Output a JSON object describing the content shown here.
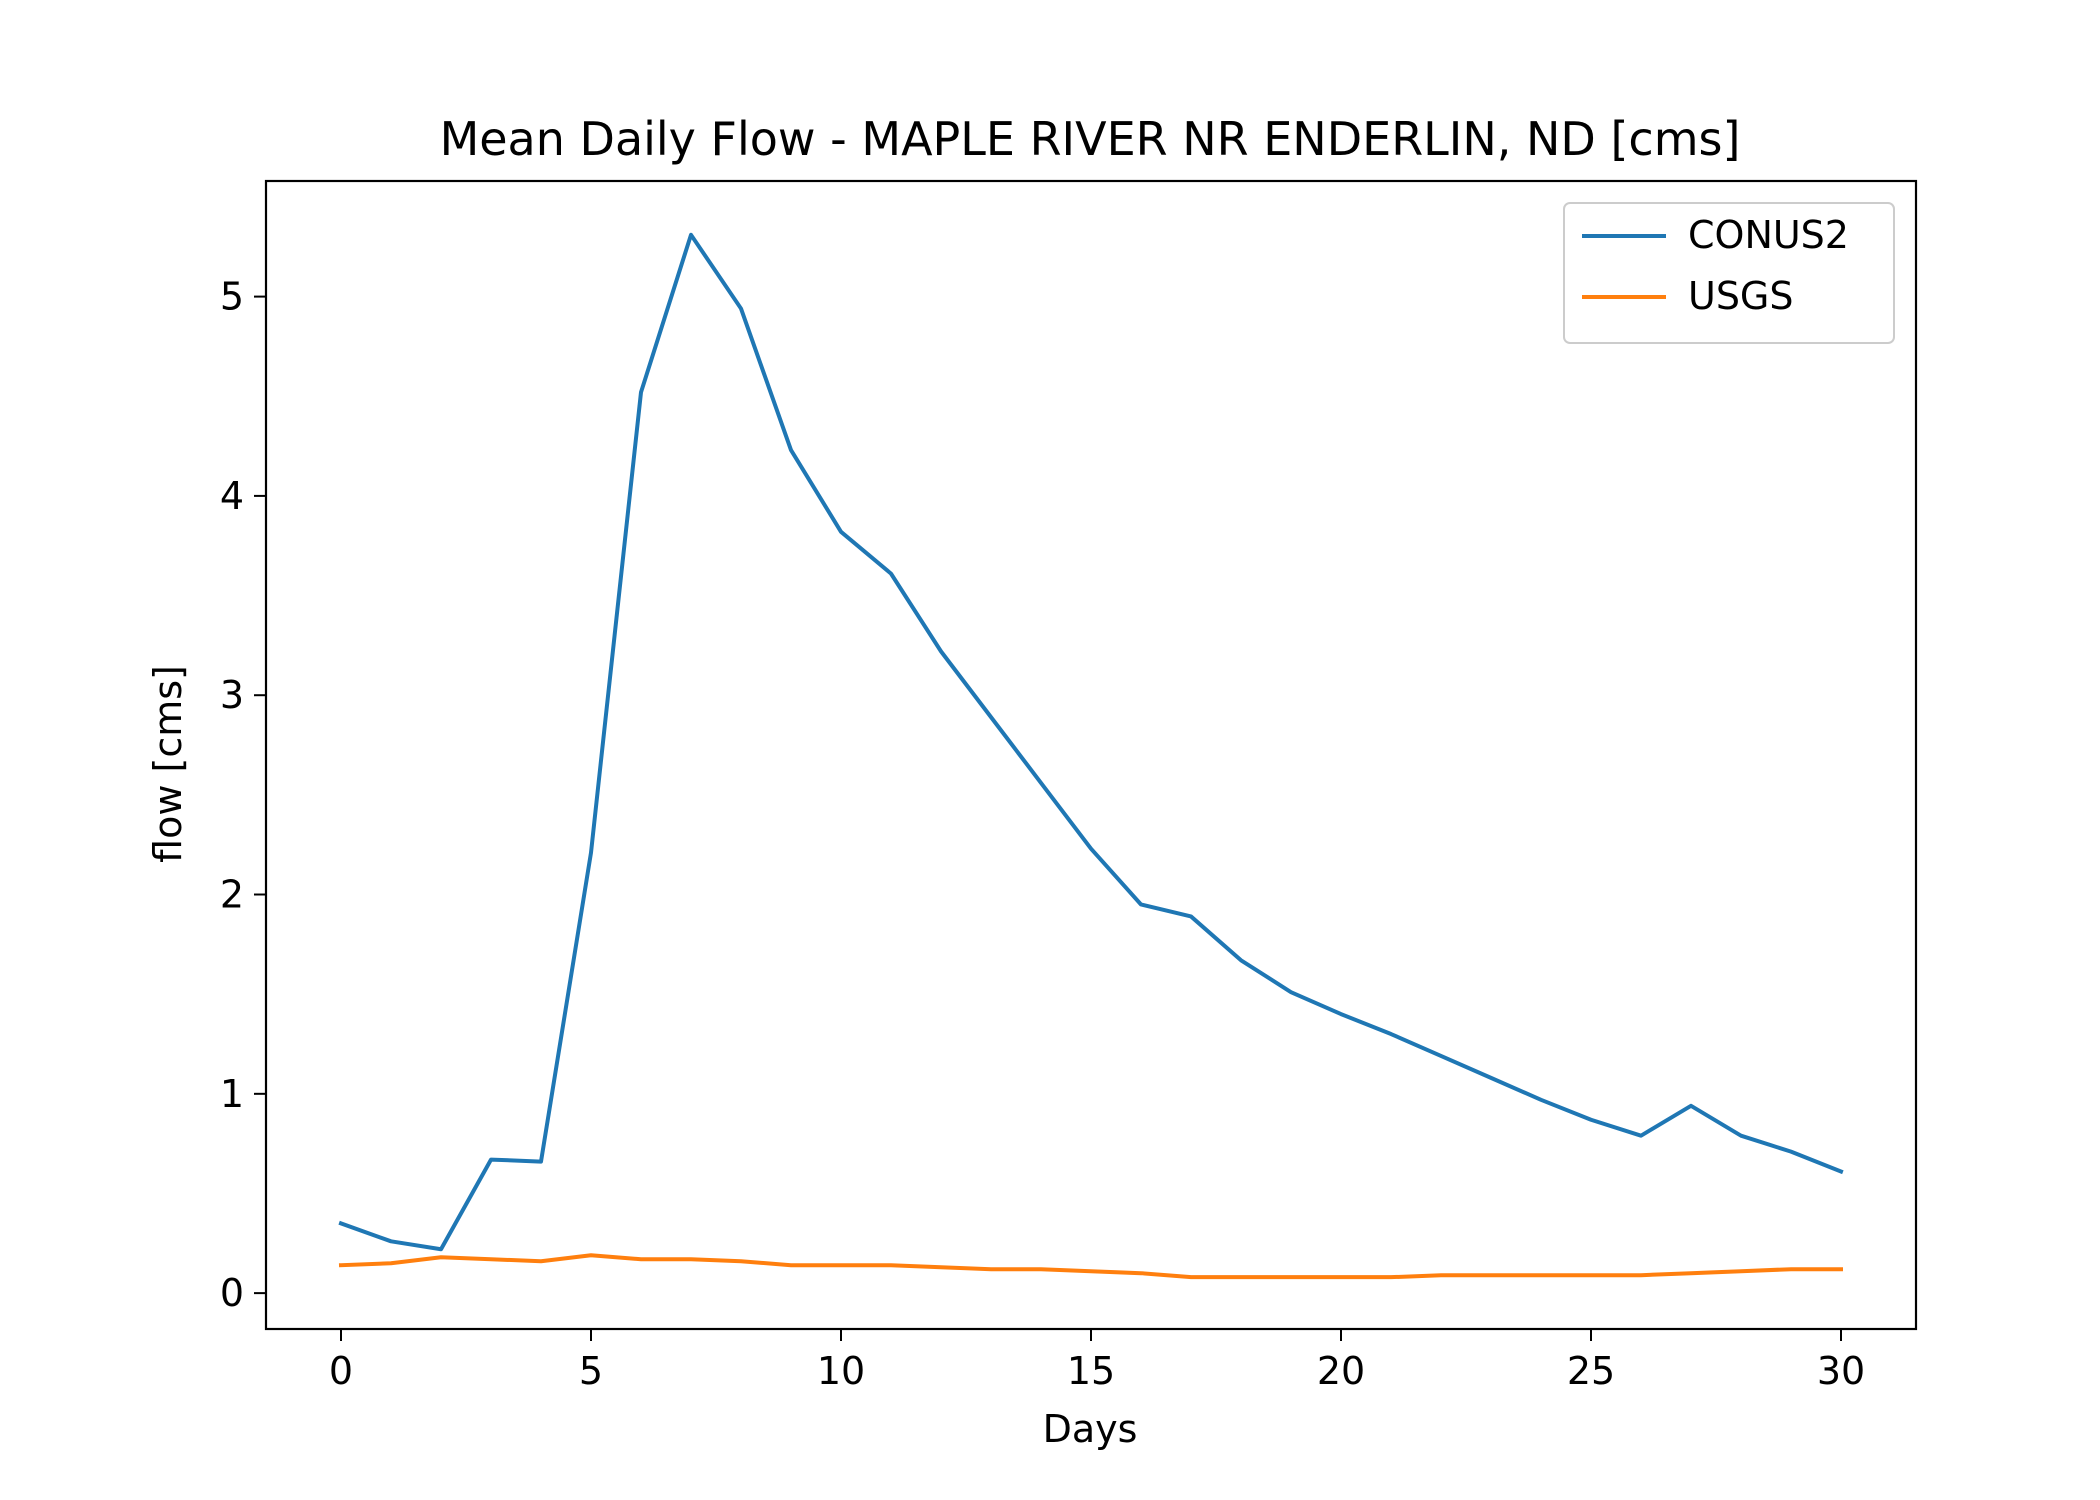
{
  "chart_data": {
    "type": "line",
    "title": "Mean Daily Flow - MAPLE RIVER NR ENDERLIN, ND [cms]",
    "xlabel": "Days",
    "ylabel": "flow [cms]",
    "xlim": [
      -1.5,
      31.5
    ],
    "ylim": [
      -0.18,
      5.58
    ],
    "xticks": [
      0,
      5,
      10,
      15,
      20,
      25,
      30
    ],
    "yticks": [
      0,
      1,
      2,
      3,
      4,
      5
    ],
    "grid": false,
    "legend_position": "top-right",
    "x": [
      0,
      1,
      2,
      3,
      4,
      5,
      6,
      7,
      8,
      9,
      10,
      11,
      12,
      13,
      14,
      15,
      16,
      17,
      18,
      19,
      20,
      21,
      22,
      23,
      24,
      25,
      26,
      27,
      28,
      29,
      30
    ],
    "series": [
      {
        "name": "CONUS2",
        "color": "#1f77b4",
        "values": [
          0.35,
          0.26,
          0.22,
          0.67,
          0.66,
          2.21,
          4.52,
          5.31,
          4.94,
          4.23,
          3.82,
          3.61,
          3.22,
          2.89,
          2.56,
          2.23,
          1.95,
          1.89,
          1.67,
          1.51,
          1.4,
          1.3,
          1.19,
          1.08,
          0.97,
          0.87,
          0.79,
          0.94,
          0.79,
          0.71,
          0.61
        ]
      },
      {
        "name": "USGS",
        "color": "#ff7f0e",
        "values": [
          0.14,
          0.15,
          0.18,
          0.17,
          0.16,
          0.19,
          0.17,
          0.17,
          0.16,
          0.14,
          0.14,
          0.14,
          0.13,
          0.12,
          0.12,
          0.11,
          0.1,
          0.08,
          0.08,
          0.08,
          0.08,
          0.08,
          0.09,
          0.09,
          0.09,
          0.09,
          0.09,
          0.1,
          0.11,
          0.12,
          0.12
        ]
      }
    ]
  }
}
